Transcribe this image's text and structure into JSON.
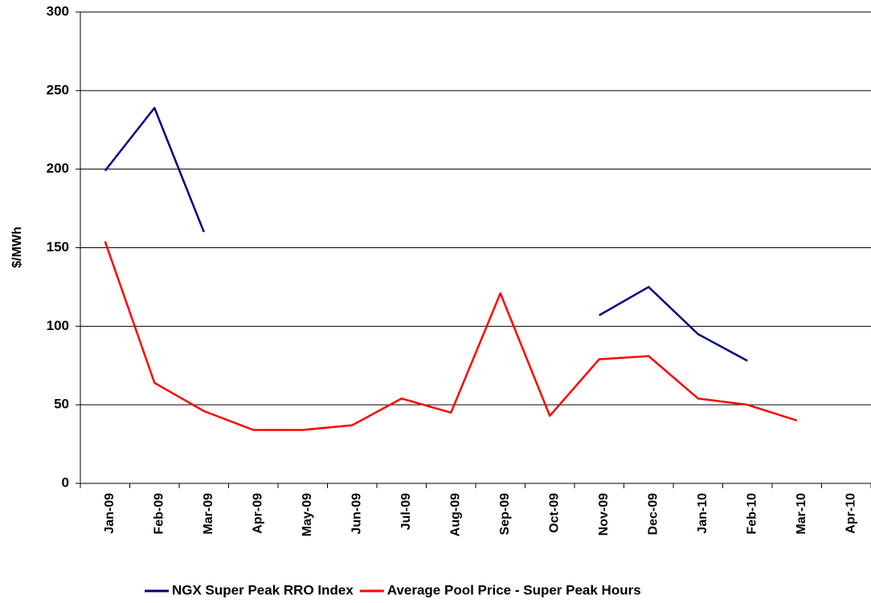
{
  "chart_data": {
    "type": "line",
    "y_label": "$/MWh",
    "categories": [
      "Jan-09",
      "Feb-09",
      "Mar-09",
      "Apr-09",
      "May-09",
      "Jun-09",
      "Jul-09",
      "Aug-09",
      "Sep-09",
      "Oct-09",
      "Nov-09",
      "Dec-09",
      "Jan-10",
      "Feb-10",
      "Mar-10",
      "Apr-10"
    ],
    "series": [
      {
        "name": "NGX Super Peak RRO Index",
        "color": "#000080",
        "values": [
          199,
          239,
          160,
          null,
          null,
          null,
          null,
          null,
          null,
          null,
          107,
          125,
          95,
          78,
          null,
          null
        ]
      },
      {
        "name": "Average Pool Price - Super Peak Hours",
        "color": "#ff0000",
        "values": [
          154,
          64,
          46,
          34,
          34,
          37,
          54,
          45,
          121,
          43,
          79,
          81,
          54,
          50,
          40,
          null
        ]
      }
    ],
    "ylim": [
      0,
      300
    ],
    "yticks": [
      0,
      50,
      100,
      150,
      200,
      250,
      300
    ],
    "grid": true,
    "legend": "bottom"
  }
}
